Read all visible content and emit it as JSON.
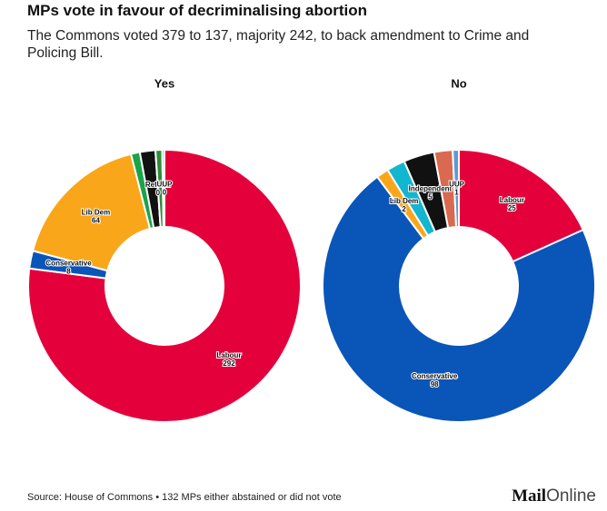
{
  "title": "MPs vote in favour of decriminalising abortion",
  "subtitle": "The Commons voted 379 to 137, majority 242, to back amendment to Crime and Policing Bill.",
  "source": "Source: House of Commons • 132 MPs either abstained or did not vote",
  "logo": [
    "Mail",
    "Online"
  ],
  "chart_data": [
    {
      "type": "pie",
      "title": "Yes",
      "categories": [
        "Labour",
        "Conservative",
        "Lib Dem",
        null,
        null,
        "Reform",
        null,
        null,
        "UUP"
      ],
      "values": [
        292,
        8,
        64,
        4,
        7,
        0,
        3,
        1,
        0
      ],
      "colors": [
        "#e4003b",
        "#0a55b8",
        "#faa61a",
        "#1aa34a",
        "#111111",
        "#12b6cf",
        "#2e8b3a",
        "#4cae4c",
        "#5b9bd5"
      ]
    },
    {
      "type": "pie",
      "title": "No",
      "categories": [
        "Labour",
        "Conservative",
        "Lib Dem",
        null,
        "Independent",
        null,
        "UUP"
      ],
      "values": [
        25,
        98,
        2,
        3,
        5,
        3,
        1
      ],
      "colors": [
        "#e4003b",
        "#0a55b8",
        "#faa61a",
        "#12b6cf",
        "#111111",
        "#d9694f",
        "#5b9bd5"
      ]
    }
  ]
}
